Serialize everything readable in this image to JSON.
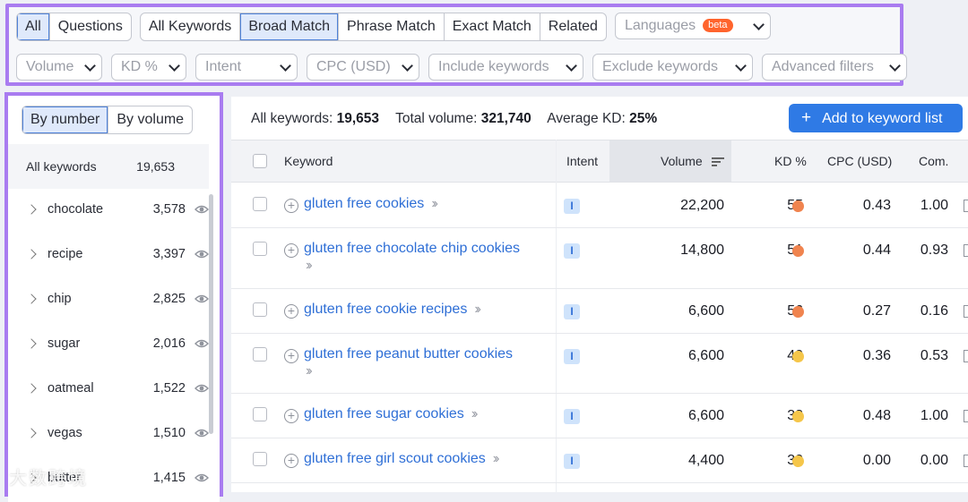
{
  "filters": {
    "scope": [
      "All",
      "Questions"
    ],
    "scope_active": 0,
    "match": [
      "All Keywords",
      "Broad Match",
      "Phrase Match",
      "Exact Match",
      "Related"
    ],
    "match_active": 1,
    "languages_label": "Languages",
    "languages_badge": "beta",
    "dropdowns": [
      "Volume",
      "KD %",
      "Intent",
      "CPC (USD)",
      "Include keywords",
      "Exclude keywords",
      "Advanced filters"
    ]
  },
  "sidebar": {
    "sort_tabs": [
      "By number",
      "By volume"
    ],
    "sort_active": 0,
    "all": {
      "label": "All keywords",
      "count": "19,653"
    },
    "groups": [
      {
        "label": "chocolate",
        "count": "3,578"
      },
      {
        "label": "recipe",
        "count": "3,397"
      },
      {
        "label": "chip",
        "count": "2,825"
      },
      {
        "label": "sugar",
        "count": "2,016"
      },
      {
        "label": "oatmeal",
        "count": "1,522"
      },
      {
        "label": "vegas",
        "count": "1,510"
      },
      {
        "label": "butter",
        "count": "1,415"
      }
    ]
  },
  "summary": {
    "all_label": "All keywords:",
    "all_value": "19,653",
    "volume_label": "Total volume:",
    "volume_value": "321,740",
    "kd_label": "Average KD:",
    "kd_value": "25%"
  },
  "add_button": "Add to keyword list",
  "table": {
    "headers": {
      "keyword": "Keyword",
      "intent": "Intent",
      "volume": "Volume",
      "kd": "KD %",
      "cpc": "CPC (USD)",
      "com": "Com."
    },
    "rows": [
      {
        "keyword": "gluten free cookies",
        "intent": "I",
        "volume": "22,200",
        "kd": "55",
        "kd_color": "#f0844f",
        "cpc": "0.43",
        "com": "1.00"
      },
      {
        "keyword": "gluten free chocolate chip cookies",
        "intent": "I",
        "volume": "14,800",
        "kd": "51",
        "kd_color": "#f0844f",
        "cpc": "0.44",
        "com": "0.93"
      },
      {
        "keyword": "gluten free cookie recipes",
        "intent": "I",
        "volume": "6,600",
        "kd": "56",
        "kd_color": "#f0844f",
        "cpc": "0.27",
        "com": "0.16"
      },
      {
        "keyword": "gluten free peanut butter cookies",
        "intent": "I",
        "volume": "6,600",
        "kd": "40",
        "kd_color": "#f5c64a",
        "cpc": "0.36",
        "com": "0.53"
      },
      {
        "keyword": "gluten free sugar cookies",
        "intent": "I",
        "volume": "6,600",
        "kd": "38",
        "kd_color": "#f5c64a",
        "cpc": "0.48",
        "com": "1.00"
      },
      {
        "keyword": "gluten free girl scout cookies",
        "intent": "I",
        "volume": "4,400",
        "kd": "30",
        "kd_color": "#f5c64a",
        "cpc": "0.00",
        "com": "0.00"
      }
    ]
  },
  "watermark": "大数跨境"
}
